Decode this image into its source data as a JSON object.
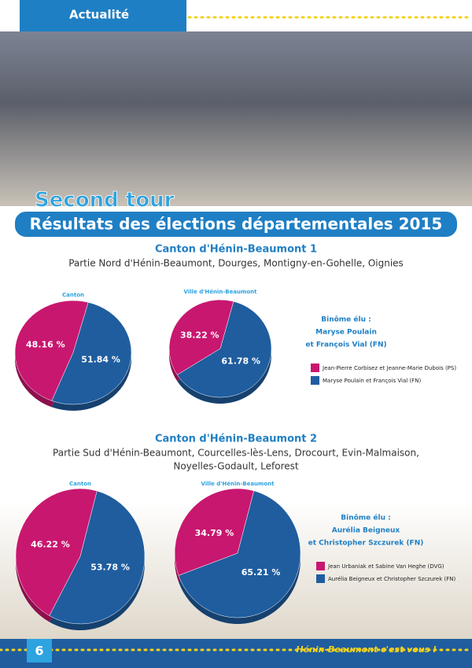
{
  "header": {
    "section": "Actualité"
  },
  "title": {
    "kicker": "Second tour",
    "main": "Résultats des élections départementales 2015"
  },
  "sections": [
    {
      "title": "Canton d'Hénin-Beaumont 1",
      "subtitle": [
        "Partie Nord d'Hénin-Beaumont, Dourges, Montigny-en-Gohelle, Oignies"
      ],
      "elected": [
        "Binôme élu :",
        "Maryse Poulain",
        "et François Vial   (FN)"
      ],
      "legend": [
        {
          "name": "Jean-Pierre Corbisez et Jeanne-Marie Dubois (PS)",
          "color": "#c8176f"
        },
        {
          "name": "Maryse Poulain et François Vial (FN)",
          "color": "#1f5d9f"
        }
      ]
    },
    {
      "title": "Canton d'Hénin-Beaumont 2",
      "subtitle": [
        "Partie Sud d'Hénin-Beaumont, Courcelles-lès-Lens, Drocourt, Evin-Malmaison,",
        "Noyelles-Godault, Leforest"
      ],
      "elected": [
        "Binôme élu :",
        "Aurélia Beigneux",
        "et Christopher Szczurek (FN)"
      ],
      "legend": [
        {
          "name": "Jean Urbaniak et Sabine Van Heghe (DVG)",
          "color": "#c8176f"
        },
        {
          "name": "Aurélia Beigneux et Christopher Szczurek (FN)",
          "color": "#1f5d9f"
        }
      ]
    }
  ],
  "chart_data": [
    {
      "type": "pie",
      "title": "Canton",
      "values": [
        48.16,
        51.84
      ],
      "value_labels": [
        "48.16 %",
        "51.84 %"
      ],
      "colors": [
        "#c8176f",
        "#1f5d9f"
      ]
    },
    {
      "type": "pie",
      "title": "Ville d'Hénin-Beaumont",
      "values": [
        38.22,
        61.78
      ],
      "value_labels": [
        "38.22 %",
        "61.78 %"
      ],
      "colors": [
        "#c8176f",
        "#1f5d9f"
      ]
    },
    {
      "type": "pie",
      "title": "Canton",
      "values": [
        46.22,
        53.78
      ],
      "value_labels": [
        "46.22 %",
        "53.78 %"
      ],
      "colors": [
        "#c8176f",
        "#1f5d9f"
      ]
    },
    {
      "type": "pie",
      "title": "Ville d'Hénin-Beaumont",
      "values": [
        34.79,
        65.21
      ],
      "value_labels": [
        "34.79 %",
        "65.21 %"
      ],
      "colors": [
        "#c8176f",
        "#1f5d9f"
      ]
    }
  ],
  "footer": {
    "page": "6",
    "tagline": "Hénin-Beaumont c'est vous !"
  }
}
